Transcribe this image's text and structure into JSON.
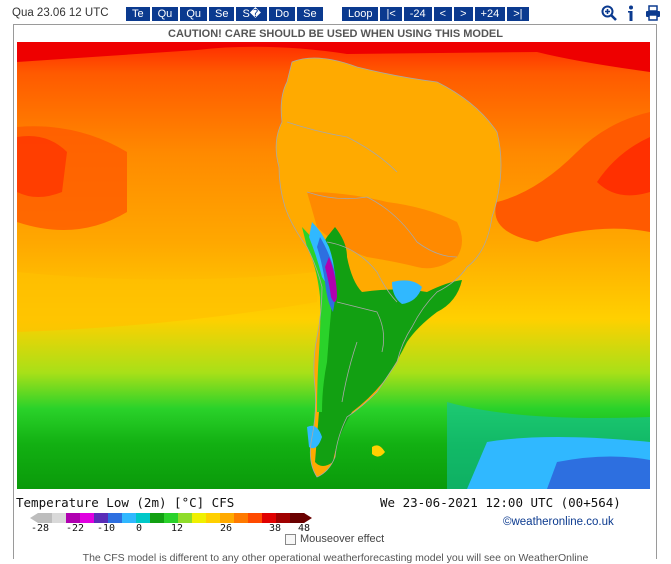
{
  "header": {
    "date_label": "Qua 23.06 12 UTC",
    "day_buttons": [
      "Te",
      "Qu",
      "Qu",
      "Se",
      "S�",
      "Do",
      "Se"
    ],
    "nav_buttons": [
      "Loop",
      "|<",
      "-24",
      "<",
      ">",
      "+24",
      ">|"
    ],
    "tools": [
      "zoom-icon",
      "info-icon",
      "print-icon"
    ]
  },
  "caution": "CAUTION! CARE SHOULD BE USED WHEN USING THIS MODEL",
  "map": {
    "caption_left": "Temperature Low (2m) [°C] CFS",
    "caption_right": "We 23-06-2021 12:00 UTC (00+564)"
  },
  "legend": {
    "tick_labels": [
      "-28",
      "-22",
      "-10",
      "0",
      "12",
      "26",
      "38",
      "48"
    ],
    "colors": [
      "#bdbdbd",
      "#d9d9d9",
      "#b000b0",
      "#e000e0",
      "#5a2db8",
      "#2d6fe0",
      "#30b8ff",
      "#00c8c8",
      "#12a012",
      "#2ad22a",
      "#8fdc2a",
      "#f0f000",
      "#ffd000",
      "#ffaa00",
      "#ff7a00",
      "#ff4a00",
      "#e00000",
      "#a00000",
      "#6a0000"
    ]
  },
  "copyright": "©weatheronline.co.uk",
  "mouseover_label": "Mouseover effect",
  "footnote": "The CFS model is different to any other operational weatherforecasting model you will see on WeatherOnline"
}
